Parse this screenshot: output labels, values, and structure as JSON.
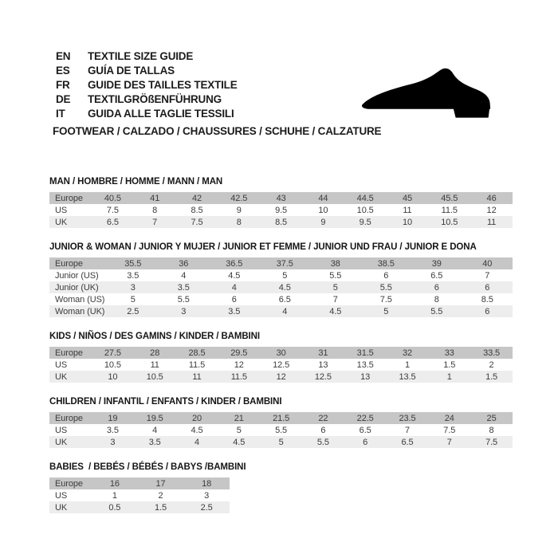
{
  "header": {
    "languages": [
      {
        "code": "EN",
        "label": "TEXTILE SIZE GUIDE"
      },
      {
        "code": "ES",
        "label": "GUÍA DE TALLAS"
      },
      {
        "code": "FR",
        "label": "GUIDE DES TAILLES TEXTILE"
      },
      {
        "code": "DE",
        "label": "TEXTILGRÖßENFÜHRUNG"
      },
      {
        "code": "IT",
        "label": "GUIDA ALLE TAGLIE TESSILI"
      }
    ],
    "category_line": "FOOTWEAR / CALZADO / CHAUSSURES / SCHUHE / CALZATURE",
    "shoe_icon": "dress-shoe-silhouette"
  },
  "colors": {
    "header_row_bg": "#c6c6c6",
    "alt_row_bg": "#ededed",
    "title_text": "#161616",
    "table_text": "#3c3c3c",
    "shoe_fill": "#000000"
  },
  "chart_data": [
    {
      "type": "table",
      "title": "MAN / HOMBRE / HOMME / MANN / MAN",
      "wide_labels": false,
      "narrow": false,
      "rows": [
        {
          "label": "Europe",
          "values": [
            "40.5",
            "41",
            "42",
            "42.5",
            "43",
            "44",
            "44.5",
            "45",
            "45.5",
            "46"
          ]
        },
        {
          "label": "US",
          "values": [
            "7.5",
            "8",
            "8.5",
            "9",
            "9.5",
            "10",
            "10.5",
            "11",
            "11.5",
            "12"
          ]
        },
        {
          "label": "UK",
          "values": [
            "6.5",
            "7",
            "7.5",
            "8",
            "8.5",
            "9",
            "9.5",
            "10",
            "10.5",
            "11"
          ]
        }
      ]
    },
    {
      "type": "table",
      "title": "JUNIOR & WOMAN / JUNIOR Y MUJER / JUNIOR ET FEMME / JUNIOR UND FRAU / JUNIOR E DONA",
      "wide_labels": true,
      "narrow": false,
      "rows": [
        {
          "label": "Europe",
          "values": [
            "35.5",
            "36",
            "36.5",
            "37.5",
            "38",
            "38.5",
            "39",
            "40"
          ]
        },
        {
          "label": "Junior (US)",
          "values": [
            "3.5",
            "4",
            "4.5",
            "5",
            "5.5",
            "6",
            "6.5",
            "7"
          ]
        },
        {
          "label": "Junior (UK)",
          "values": [
            "3",
            "3.5",
            "4",
            "4.5",
            "5",
            "5.5",
            "6",
            "6"
          ]
        },
        {
          "label": "Woman (US)",
          "values": [
            "5",
            "5.5",
            "6",
            "6.5",
            "7",
            "7.5",
            "8",
            "8.5"
          ]
        },
        {
          "label": "Woman (UK)",
          "values": [
            "2.5",
            "3",
            "3.5",
            "4",
            "4.5",
            "5",
            "5.5",
            "6"
          ]
        }
      ]
    },
    {
      "type": "table",
      "title": "KIDS / NIÑOS / DES GAMINS / KINDER / BAMBINI",
      "wide_labels": false,
      "narrow": false,
      "rows": [
        {
          "label": "Europe",
          "values": [
            "27.5",
            "28",
            "28.5",
            "29.5",
            "30",
            "31",
            "31.5",
            "32",
            "33",
            "33.5"
          ]
        },
        {
          "label": "US",
          "values": [
            "10.5",
            "11",
            "11.5",
            "12",
            "12.5",
            "13",
            "13.5",
            "1",
            "1.5",
            "2"
          ]
        },
        {
          "label": "UK",
          "values": [
            "10",
            "10.5",
            "11",
            "11.5",
            "12",
            "12.5",
            "13",
            "13.5",
            "1",
            "1.5"
          ]
        }
      ]
    },
    {
      "type": "table",
      "title": "CHILDREN / INFANTIL / ENFANTS / KINDER / BAMBINI",
      "wide_labels": false,
      "narrow": false,
      "rows": [
        {
          "label": "Europe",
          "values": [
            "19",
            "19.5",
            "20",
            "21",
            "21.5",
            "22",
            "22.5",
            "23.5",
            "24",
            "25"
          ]
        },
        {
          "label": "US",
          "values": [
            "3.5",
            "4",
            "4.5",
            "5",
            "5.5",
            "6",
            "6.5",
            "7",
            "7.5",
            "8"
          ]
        },
        {
          "label": "UK",
          "values": [
            "3",
            "3.5",
            "4",
            "4.5",
            "5",
            "5.5",
            "6",
            "6.5",
            "7",
            "7.5"
          ]
        }
      ]
    },
    {
      "type": "table",
      "title": "BABIES  / BEBÉS / BÉBÉS / BABYS /BAMBINI",
      "wide_labels": false,
      "narrow": true,
      "rows": [
        {
          "label": "Europe",
          "values": [
            "16",
            "17",
            "18"
          ]
        },
        {
          "label": "US",
          "values": [
            "1",
            "2",
            "3"
          ]
        },
        {
          "label": "UK",
          "values": [
            "0.5",
            "1.5",
            "2.5"
          ]
        }
      ]
    }
  ]
}
